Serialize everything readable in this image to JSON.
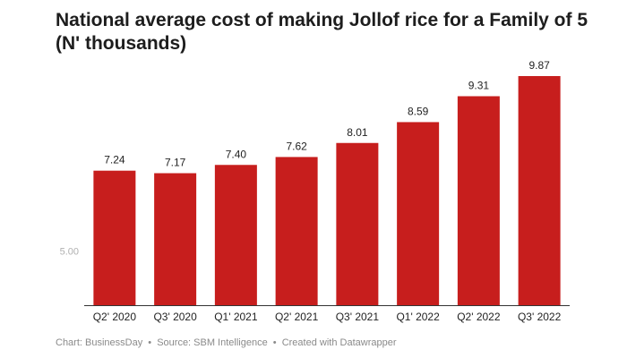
{
  "title": "National average cost of making Jollof rice for a Family of 5 (N' thousands)",
  "footer": {
    "chart_credit": "Chart: BusinessDay",
    "source": "Source: SBM Intelligence",
    "created": "Created with Datawrapper",
    "separator": "•"
  },
  "colors": {
    "bar": "#c71e1d",
    "axis": "#333333",
    "tick_text": "#b0b0b0",
    "label_text": "#222222"
  },
  "chart_data": {
    "type": "bar",
    "title": "National average cost of making Jollof rice for a Family of 5 (N' thousands)",
    "categories": [
      "Q2' 2020",
      "Q3' 2020",
      "Q1' 2021",
      "Q2' 2021",
      "Q3' 2021",
      "Q1' 2022",
      "Q2' 2022",
      "Q3' 2022"
    ],
    "values": [
      7.24,
      7.17,
      7.4,
      7.62,
      8.01,
      8.59,
      9.31,
      9.87
    ],
    "value_labels": [
      "7.24",
      "7.17",
      "7.40",
      "7.62",
      "8.01",
      "8.59",
      "9.31",
      "9.87"
    ],
    "yticks": [
      5.0
    ],
    "ytick_labels": [
      "5.00"
    ],
    "ylim": [
      3.5,
      9.87
    ],
    "xlabel": "",
    "ylabel": "",
    "grid": false,
    "legend": "none"
  }
}
